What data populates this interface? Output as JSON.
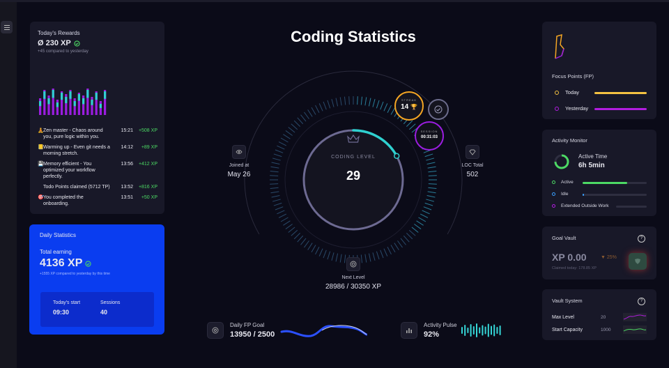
{
  "rewards": {
    "title": "Today's Rewards",
    "amount": "Ø 230 XP",
    "compare": "+45 compared to yesterday",
    "bars": [
      0.6,
      0.9,
      0.7,
      0.95,
      0.55,
      0.85,
      0.75,
      0.9,
      0.6,
      0.8,
      0.7,
      0.95,
      0.65,
      0.85,
      0.5,
      0.9
    ],
    "activities": [
      {
        "icon": "🧘",
        "text": "Zen master - Chaos around you, pure logic within you.",
        "time": "15:21",
        "xp": "+508 XP"
      },
      {
        "icon": "📒",
        "text": "Warming up - Even git needs a morning stretch.",
        "time": "14:12",
        "xp": "+89 XP"
      },
      {
        "icon": "💾",
        "text": "Memory efficient - You optimized your workflow perfectly.",
        "time": "13:56",
        "xp": "+412 XP"
      },
      {
        "icon": "",
        "text": "Todo Points claimed (5712 TP)",
        "time": "13:52",
        "xp": "+816 XP"
      },
      {
        "icon": "🎯",
        "text": "You completed the onboarding.",
        "time": "13:51",
        "xp": "+50 XP"
      }
    ]
  },
  "daily": {
    "title": "Daily Statistics",
    "earning_label": "Total earning",
    "earning_value": "4136 XP",
    "compare": "+1555 XP compared to yesterday by this time",
    "start_label": "Today's start",
    "start_value": "09:30",
    "sessions_label": "Sessions",
    "sessions_value": "40"
  },
  "center": {
    "title": "Coding Statistics",
    "level_label": "CODING LEVEL",
    "level_value": "29",
    "level_progress": 0.17,
    "joined_label": "Joined at",
    "joined_value": "May 26",
    "loc_label": "LOC Total",
    "loc_value": "502",
    "next_label": "Next Level",
    "next_value": "28986 / 30350 XP",
    "streak_label": "STREAK",
    "streak_value": "14",
    "session_label": "SESSION",
    "session_value": "00:31:03",
    "fp_goal_label": "Daily FP Goal",
    "fp_goal_value": "13950 / 2500",
    "pulse_label": "Activity Pulse",
    "pulse_value": "92%"
  },
  "focus": {
    "title": "Focus Points (FP)",
    "today_label": "Today",
    "yesterday_label": "Yesterday",
    "today_color": "#f5c242",
    "yesterday_color": "#b21de0"
  },
  "activity": {
    "title": "Activity Monitor",
    "time_label": "Active Time",
    "time_value": "6h 5min",
    "active_label": "Active",
    "idle_label": "Idle",
    "outside_label": "Extended Outside Work",
    "active_level": 0.7,
    "idle_level": 0.02,
    "outside_level": 0.0
  },
  "vault": {
    "title": "Goal Vault",
    "value": "XP 0.00",
    "change": "▼ 25%",
    "claimed": "Claimed today: 178.85 XP"
  },
  "vsys": {
    "title": "Vault System",
    "max_label": "Max Level",
    "max_value": "20",
    "capacity_label": "Start Capacity",
    "capacity_value": "1000"
  }
}
